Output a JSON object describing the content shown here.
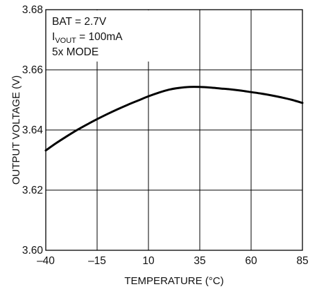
{
  "chart_data": {
    "type": "line",
    "title": "",
    "xlabel": "TEMPERATURE (°C)",
    "ylabel": "OUTPUT VOLTAGE (V)",
    "xlim": [
      -40,
      85
    ],
    "ylim": [
      3.6,
      3.68
    ],
    "x_ticks": [
      -40,
      -15,
      10,
      35,
      60,
      85
    ],
    "x_tick_labels": [
      "–40",
      "–15",
      "10",
      "35",
      "60",
      "85"
    ],
    "y_ticks": [
      3.6,
      3.62,
      3.64,
      3.66,
      3.68
    ],
    "y_tick_labels": [
      "3.60",
      "3.62",
      "3.64",
      "3.66",
      "3.68"
    ],
    "grid": true,
    "annotations": {
      "line1": "BAT = 2.7V",
      "line2_main": "I",
      "line2_sub": "VOUT",
      "line2_rest": " = 100mA",
      "line3": "5x MODE"
    },
    "series": [
      {
        "x": [
          -40,
          -35,
          -30,
          -25,
          -20,
          -15,
          -10,
          -5,
          0,
          5,
          10,
          15,
          20,
          25,
          30,
          35,
          40,
          45,
          50,
          55,
          60,
          65,
          70,
          75,
          80,
          85
        ],
        "y": [
          3.6332,
          3.6356,
          3.6378,
          3.6399,
          3.6418,
          3.6436,
          3.6453,
          3.6469,
          3.6484,
          3.6498,
          3.6512,
          3.6524,
          3.6534,
          3.654,
          3.6543,
          3.6543,
          3.6541,
          3.6538,
          3.6535,
          3.6531,
          3.6526,
          3.6521,
          3.6515,
          3.6508,
          3.65,
          3.649
        ]
      }
    ]
  },
  "colors": {
    "line": "#000000",
    "grid": "#000000",
    "background": "#ffffff"
  }
}
